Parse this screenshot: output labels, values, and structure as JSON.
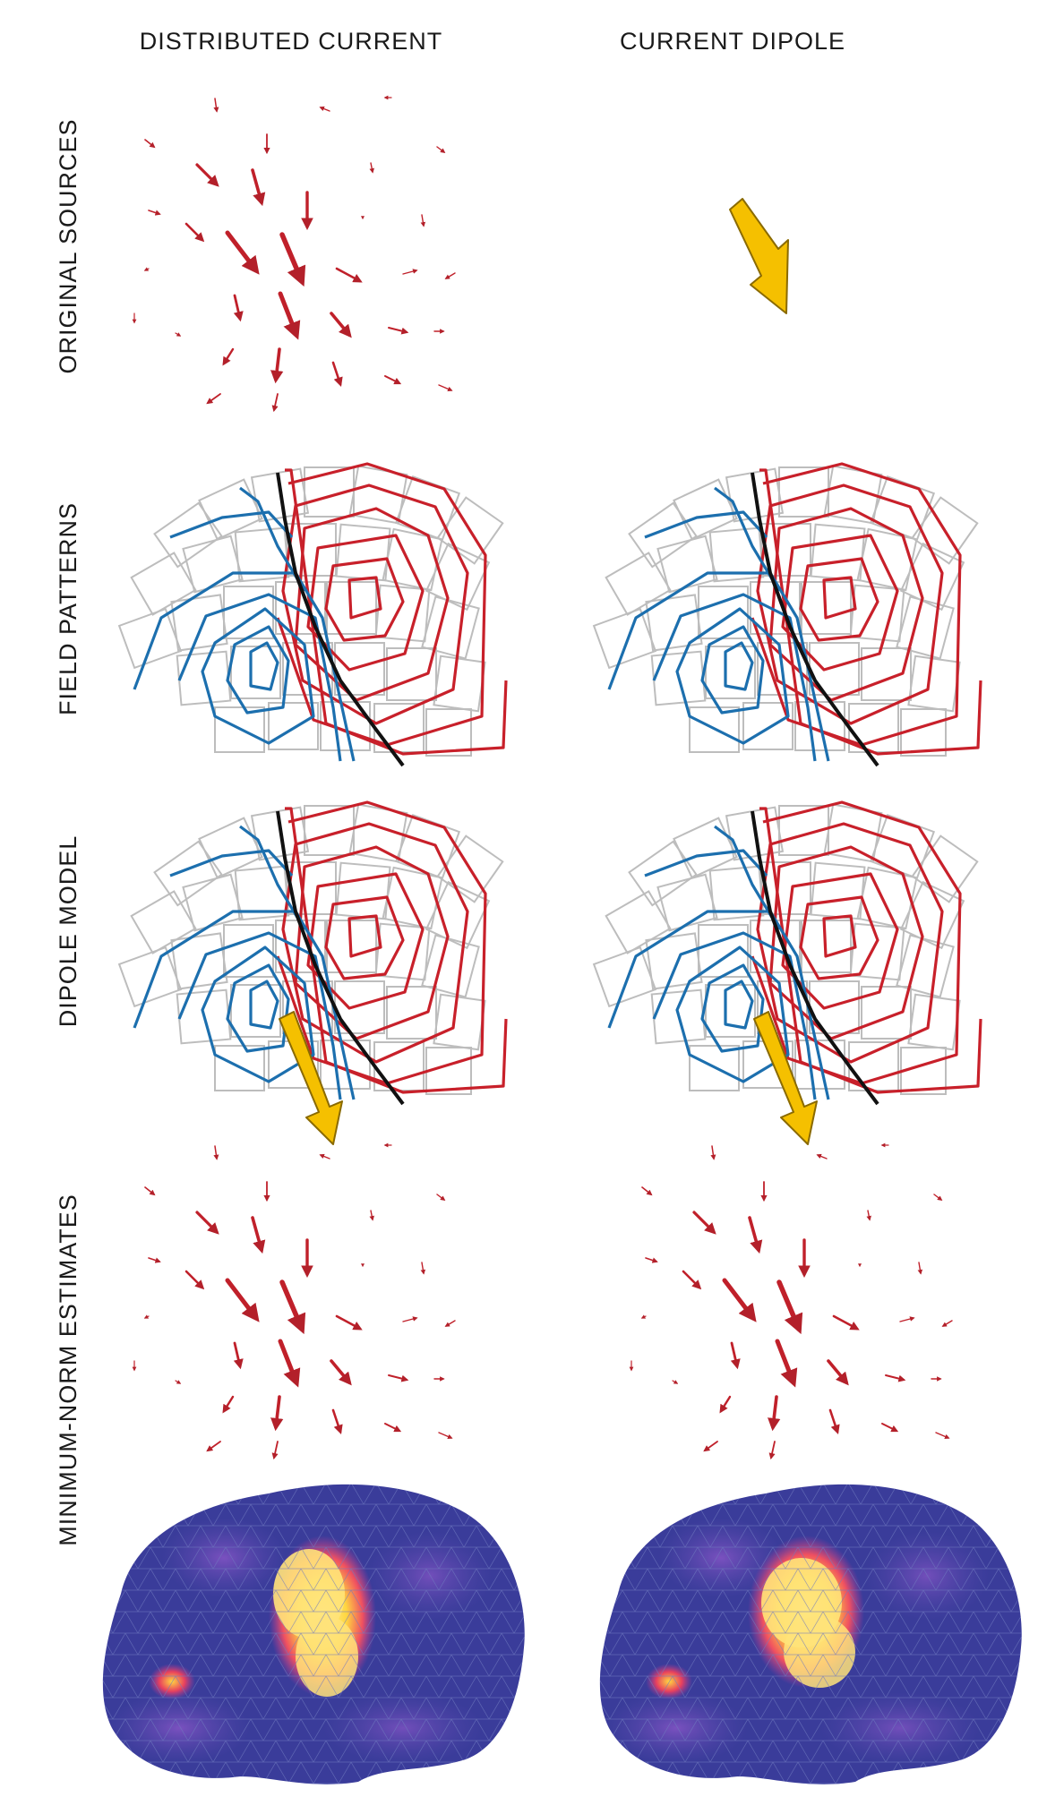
{
  "columns": {
    "left": "DISTRIBUTED CURRENT",
    "right": "CURRENT DIPOLE"
  },
  "rows": {
    "sources": "ORIGINAL SOURCES",
    "field": "FIELD PATTERNS",
    "dipole": "DIPOLE MODEL",
    "estimates": "MINIMUM-NORM  ESTIMATES"
  },
  "colors": {
    "source_arrow": "#c0202a",
    "dipole_arrow": "#f5c000",
    "positive_contour": "#c8202a",
    "negative_contour": "#1c6fae",
    "zero_line": "#111111",
    "sensor_grid": "#bdbdbd",
    "cortex_base": "#3a3c9a",
    "cortex_hot": "#ffe37a"
  },
  "panels": [
    {
      "row": "sources",
      "column": "left",
      "type": "vector-field"
    },
    {
      "row": "sources",
      "column": "right",
      "type": "single-dipole"
    },
    {
      "row": "field",
      "column": "left",
      "type": "contour-map"
    },
    {
      "row": "field",
      "column": "right",
      "type": "contour-map"
    },
    {
      "row": "dipole",
      "column": "left",
      "type": "contour-map-with-dipole"
    },
    {
      "row": "dipole",
      "column": "right",
      "type": "contour-map-with-dipole"
    },
    {
      "row": "estimates",
      "column": "left",
      "type": "vector-field"
    },
    {
      "row": "estimates",
      "column": "right",
      "type": "vector-field"
    },
    {
      "row": "estimates",
      "column": "left",
      "type": "cortex-surface"
    },
    {
      "row": "estimates",
      "column": "right",
      "type": "cortex-surface"
    }
  ]
}
